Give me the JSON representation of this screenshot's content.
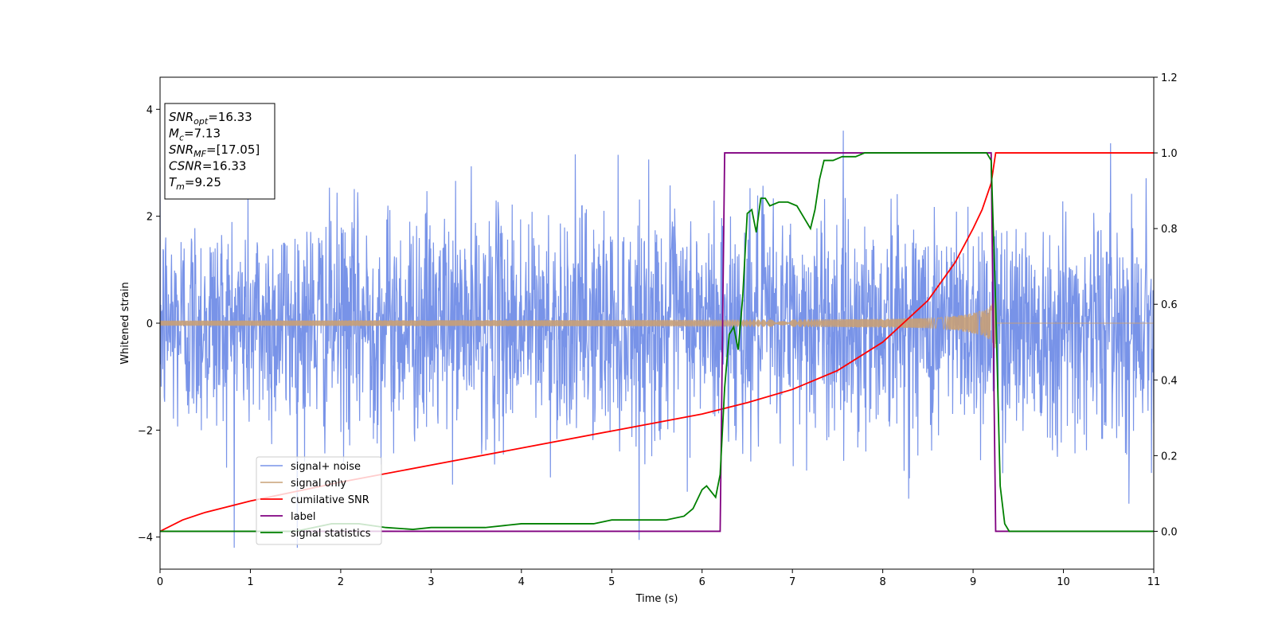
{
  "chart_data": {
    "type": "line",
    "xlabel": "Time (s)",
    "ylabel_left": "Whitened strain",
    "ylabel_right": "",
    "xlim": [
      0,
      11
    ],
    "ylim_left": [
      -4.6,
      4.6
    ],
    "ylim_right": [
      -0.1,
      1.2
    ],
    "x_ticks": [
      0,
      1,
      2,
      3,
      4,
      5,
      6,
      7,
      8,
      9,
      10,
      11
    ],
    "y_left_ticks": [
      -4,
      -2,
      0,
      2,
      4
    ],
    "y_right_ticks": [
      0.0,
      0.2,
      0.4,
      0.6,
      0.8,
      1.0,
      1.2
    ],
    "grid": false,
    "legend_position": "lower-left",
    "annotation": {
      "lines": [
        {
          "sym": "SNR",
          "sub": "opt",
          "value": "=16.33"
        },
        {
          "sym": "M",
          "sub": "c",
          "value": "=7.13"
        },
        {
          "sym": "SNR",
          "sub": "MF",
          "value": "=[17.05]"
        },
        {
          "sym": "CSNR",
          "sub": "",
          "value": "=16.33"
        },
        {
          "sym": "T",
          "sub": "m",
          "value": "=9.25"
        }
      ]
    },
    "series": [
      {
        "name": "signal+ noise",
        "axis": "left",
        "color": "#7893e8",
        "kind": "noise",
        "noise_std": 1.0,
        "noise_peak": 4.2,
        "t_range": [
          0,
          11
        ]
      },
      {
        "name": "signal only",
        "axis": "left",
        "color": "#c8a077",
        "kind": "chirp",
        "amplitude_start": 0.05,
        "amplitude_at_9s": 1.1,
        "t_start": 0,
        "t_merge": 9.25,
        "t_end": 11
      },
      {
        "name": "cumilative SNR",
        "axis": "right",
        "color": "#ff0000",
        "x": [
          0,
          0.25,
          0.5,
          1,
          1.5,
          2,
          3,
          4,
          5,
          6,
          6.5,
          7,
          7.5,
          8,
          8.5,
          8.8,
          9.0,
          9.1,
          9.2,
          9.25,
          11
        ],
        "y": [
          0.0,
          0.03,
          0.05,
          0.08,
          0.105,
          0.13,
          0.175,
          0.22,
          0.265,
          0.31,
          0.34,
          0.375,
          0.425,
          0.5,
          0.61,
          0.71,
          0.8,
          0.85,
          0.92,
          1.0,
          1.0
        ]
      },
      {
        "name": "label",
        "axis": "right",
        "color": "#800080",
        "x": [
          0,
          6.2,
          6.25,
          9.2,
          9.25,
          11
        ],
        "y": [
          0,
          0,
          1,
          1,
          0,
          0
        ]
      },
      {
        "name": "signal statistics",
        "axis": "right",
        "color": "#008000",
        "x": [
          0,
          0.5,
          1,
          1.5,
          1.9,
          2,
          2.2,
          2.5,
          2.8,
          3,
          3.3,
          3.6,
          4,
          4.2,
          4.5,
          4.8,
          5,
          5.3,
          5.6,
          5.8,
          5.9,
          6.0,
          6.05,
          6.15,
          6.2,
          6.25,
          6.3,
          6.35,
          6.4,
          6.45,
          6.5,
          6.55,
          6.6,
          6.65,
          6.7,
          6.75,
          6.85,
          6.95,
          7.05,
          7.15,
          7.2,
          7.25,
          7.3,
          7.35,
          7.4,
          7.45,
          7.55,
          7.7,
          7.8,
          8.0,
          8.2,
          8.4,
          8.6,
          8.8,
          9.0,
          9.15,
          9.2,
          9.25,
          9.3,
          9.35,
          9.4,
          9.5,
          10,
          11
        ],
        "y": [
          0.0,
          0.0,
          0.0,
          0.0,
          0.02,
          0.02,
          0.02,
          0.01,
          0.005,
          0.01,
          0.01,
          0.01,
          0.02,
          0.02,
          0.02,
          0.02,
          0.03,
          0.03,
          0.03,
          0.04,
          0.06,
          0.11,
          0.12,
          0.09,
          0.15,
          0.38,
          0.52,
          0.54,
          0.48,
          0.62,
          0.84,
          0.85,
          0.79,
          0.88,
          0.88,
          0.86,
          0.87,
          0.87,
          0.86,
          0.82,
          0.8,
          0.85,
          0.93,
          0.98,
          0.98,
          0.98,
          0.99,
          0.99,
          1.0,
          1.0,
          1.0,
          1.0,
          1.0,
          1.0,
          1.0,
          1.0,
          0.98,
          0.6,
          0.12,
          0.02,
          0.0,
          0.0,
          0.0,
          0.0
        ]
      }
    ]
  }
}
